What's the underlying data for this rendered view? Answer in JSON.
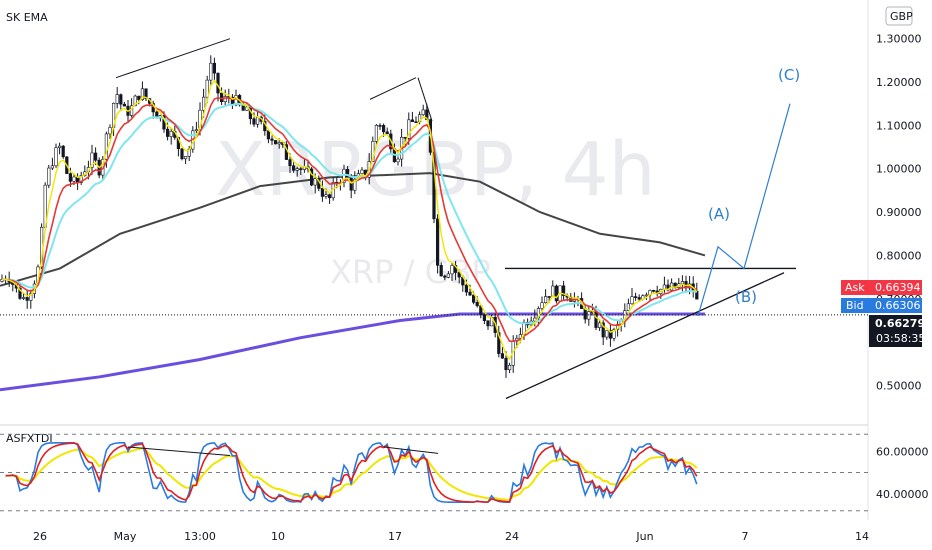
{
  "main_indicator_label": "SK EMA",
  "sub_indicator_label": "ASFXTDI",
  "watermark": {
    "symbol": "XRPGBP, 4h",
    "sub": "XRP / GBP"
  },
  "currency_badge": "GBP",
  "price_tags": {
    "ask_label": "Ask",
    "ask_value": "0.66394",
    "bid_label": "Bid",
    "bid_value": "0.66306",
    "last_value": "0.66279",
    "countdown": "03:58:35"
  },
  "wave_labels": {
    "a": "(A)",
    "b": "(B)",
    "c": "(C)"
  },
  "colors": {
    "ema_fast": "#f2e600",
    "ema_mid": "#e53935",
    "ema_slow": "#7fe6ee",
    "ema_200": "#454545",
    "ema_long": "#6a4ee0",
    "projection": "#2f7fd0",
    "rsi_red": "#e02020",
    "rsi_blue": "#2a7be0",
    "rsi_yellow": "#f2e600",
    "ask": "#f23645",
    "bid": "#2a7be0",
    "last": "#131722"
  },
  "chart_data": [
    {
      "type": "line",
      "title": "XRPGBP, 4h",
      "y_axis": {
        "ticks": [
          "0.50000",
          "0.60000",
          "0.70000",
          "0.80000",
          "0.90000",
          "1.00000",
          "1.10000",
          "1.20000",
          "1.30000"
        ],
        "range": [
          0.455,
          1.32
        ]
      },
      "x_axis": {
        "ticks": [
          "26",
          "May",
          "13:00",
          "10",
          "17",
          "24",
          "Jun",
          "7",
          "14"
        ]
      },
      "price_path": [
        [
          0,
          0.74
        ],
        [
          8,
          0.76
        ],
        [
          16,
          0.72
        ],
        [
          24,
          0.7
        ],
        [
          32,
          0.73
        ],
        [
          40,
          0.78
        ],
        [
          44,
          0.95
        ],
        [
          52,
          1.02
        ],
        [
          60,
          1.05
        ],
        [
          68,
          0.98
        ],
        [
          76,
          0.96
        ],
        [
          84,
          1.0
        ],
        [
          92,
          1.02
        ],
        [
          100,
          1.0
        ],
        [
          108,
          1.09
        ],
        [
          116,
          1.18
        ],
        [
          124,
          1.13
        ],
        [
          132,
          1.14
        ],
        [
          140,
          1.18
        ],
        [
          150,
          1.15
        ],
        [
          160,
          1.12
        ],
        [
          168,
          1.09
        ],
        [
          176,
          1.06
        ],
        [
          184,
          1.03
        ],
        [
          190,
          1.05
        ],
        [
          196,
          1.1
        ],
        [
          204,
          1.17
        ],
        [
          210,
          1.24
        ],
        [
          216,
          1.19
        ],
        [
          222,
          1.15
        ],
        [
          230,
          1.17
        ],
        [
          240,
          1.14
        ],
        [
          250,
          1.12
        ],
        [
          260,
          1.1
        ],
        [
          270,
          1.08
        ],
        [
          280,
          1.05
        ],
        [
          290,
          1.02
        ],
        [
          300,
          1.0
        ],
        [
          310,
          0.98
        ],
        [
          320,
          0.96
        ],
        [
          328,
          0.92
        ],
        [
          336,
          0.97
        ],
        [
          344,
          0.99
        ],
        [
          352,
          0.96
        ],
        [
          360,
          0.98
        ],
        [
          366,
          0.99
        ],
        [
          372,
          1.05
        ],
        [
          378,
          1.12
        ],
        [
          384,
          1.08
        ],
        [
          390,
          1.07
        ],
        [
          396,
          1.02
        ],
        [
          402,
          1.07
        ],
        [
          410,
          1.1
        ],
        [
          418,
          1.12
        ],
        [
          426,
          1.12
        ],
        [
          432,
          1.02
        ],
        [
          436,
          0.78
        ],
        [
          444,
          0.76
        ],
        [
          452,
          0.78
        ],
        [
          460,
          0.74
        ],
        [
          468,
          0.72
        ],
        [
          476,
          0.68
        ],
        [
          484,
          0.64
        ],
        [
          492,
          0.65
        ],
        [
          500,
          0.58
        ],
        [
          506,
          0.52
        ],
        [
          512,
          0.58
        ],
        [
          518,
          0.62
        ],
        [
          526,
          0.65
        ],
        [
          534,
          0.67
        ],
        [
          542,
          0.7
        ],
        [
          550,
          0.72
        ],
        [
          558,
          0.71
        ],
        [
          566,
          0.72
        ],
        [
          574,
          0.7
        ],
        [
          582,
          0.67
        ],
        [
          590,
          0.66
        ],
        [
          598,
          0.64
        ],
        [
          606,
          0.61
        ],
        [
          614,
          0.62
        ],
        [
          622,
          0.65
        ],
        [
          630,
          0.69
        ],
        [
          638,
          0.71
        ],
        [
          646,
          0.72
        ],
        [
          654,
          0.73
        ],
        [
          662,
          0.72
        ],
        [
          670,
          0.72
        ],
        [
          678,
          0.73
        ],
        [
          686,
          0.73
        ],
        [
          694,
          0.72
        ],
        [
          700,
          0.66
        ]
      ],
      "series": [
        {
          "name": "EMA 200",
          "values": [
            [
              0,
              0.73
            ],
            [
              60,
              0.77
            ],
            [
              120,
              0.85
            ],
            [
              200,
              0.91
            ],
            [
              260,
              0.96
            ],
            [
              330,
              0.98
            ],
            [
              430,
              0.99
            ],
            [
              480,
              0.97
            ],
            [
              540,
              0.9
            ],
            [
              600,
              0.85
            ],
            [
              660,
              0.83
            ],
            [
              705,
              0.8
            ]
          ]
        },
        {
          "name": "EMA long",
          "values": [
            [
              0,
              0.49
            ],
            [
              100,
              0.52
            ],
            [
              200,
              0.56
            ],
            [
              300,
              0.61
            ],
            [
              400,
              0.65
            ],
            [
              460,
              0.665
            ],
            [
              560,
              0.665
            ],
            [
              705,
              0.665
            ]
          ]
        }
      ],
      "annotations": {
        "triangle_top": 0.77,
        "wave_projection": [
          [
            698,
            0.66
          ],
          [
            718,
            0.82
          ],
          [
            744,
            0.77
          ],
          [
            790,
            1.15
          ]
        ],
        "trendline_lower": [
          [
            506,
            0.47
          ],
          [
            784,
            0.76
          ]
        ]
      }
    },
    {
      "type": "line",
      "title": "ASFXTDI",
      "y_axis": {
        "ticks": [
          "40.00000",
          "60.00000"
        ],
        "range": [
          30,
          70
        ]
      },
      "levels": [
        32,
        50,
        68
      ]
    }
  ]
}
